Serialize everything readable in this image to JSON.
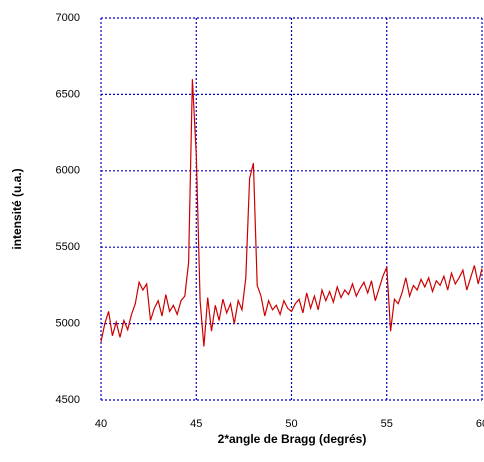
{
  "chart_data": {
    "type": "line",
    "xlabel": "2*angle  de  Bragg  (degrés)",
    "ylabel": "intensité  (u.a.)",
    "x": [
      40.0,
      40.2,
      40.4,
      40.6,
      40.8,
      41.0,
      41.2,
      41.4,
      41.6,
      41.8,
      42.0,
      42.2,
      42.4,
      42.6,
      42.8,
      43.0,
      43.2,
      43.4,
      43.6,
      43.8,
      44.0,
      44.2,
      44.4,
      44.6,
      44.8,
      45.0,
      45.2,
      45.4,
      45.6,
      45.8,
      46.0,
      46.2,
      46.4,
      46.6,
      46.8,
      47.0,
      47.2,
      47.4,
      47.6,
      47.8,
      48.0,
      48.2,
      48.4,
      48.6,
      48.8,
      49.0,
      49.2,
      49.4,
      49.6,
      49.8,
      50.0,
      50.2,
      50.4,
      50.6,
      50.8,
      51.0,
      51.2,
      51.4,
      51.6,
      51.8,
      52.0,
      52.2,
      52.4,
      52.6,
      52.8,
      53.0,
      53.2,
      53.4,
      53.6,
      53.8,
      54.0,
      54.2,
      54.4,
      54.6,
      54.8,
      55.0,
      55.2,
      55.4,
      55.6,
      55.8,
      56.0,
      56.2,
      56.4,
      56.6,
      56.8,
      57.0,
      57.2,
      57.4,
      57.6,
      57.8,
      58.0,
      58.2,
      58.4,
      58.6,
      58.8,
      59.0,
      59.2,
      59.4,
      59.6,
      59.8,
      60.0
    ],
    "series": [
      {
        "color": "#cc0000",
        "values": [
          4880,
          5000,
          5080,
          4920,
          5010,
          4910,
          5020,
          4960,
          5060,
          5130,
          5270,
          5220,
          5260,
          5020,
          5100,
          5150,
          5050,
          5190,
          5080,
          5120,
          5060,
          5150,
          5180,
          5400,
          6600,
          6100,
          5150,
          4850,
          5170,
          4950,
          5120,
          5020,
          5160,
          5070,
          5130,
          5000,
          5150,
          5090,
          5300,
          5950,
          6050,
          5250,
          5180,
          5050,
          5150,
          5090,
          5120,
          5060,
          5150,
          5100,
          5080,
          5130,
          5160,
          5070,
          5200,
          5100,
          5180,
          5090,
          5220,
          5150,
          5210,
          5140,
          5240,
          5170,
          5220,
          5190,
          5260,
          5180,
          5230,
          5270,
          5200,
          5280,
          5150,
          5230,
          5310,
          5370,
          4950,
          5160,
          5130,
          5200,
          5300,
          5180,
          5250,
          5220,
          5290,
          5240,
          5300,
          5210,
          5280,
          5250,
          5310,
          5220,
          5330,
          5260,
          5300,
          5350,
          5220,
          5300,
          5380,
          5260,
          5360
        ]
      }
    ],
    "xlim": [
      40,
      60
    ],
    "xticks": [
      40,
      45,
      50,
      55,
      60
    ],
    "ylim": [
      4500,
      7000
    ],
    "yticks": [
      4500,
      5000,
      5500,
      6000,
      6500,
      7000
    ],
    "grid": true,
    "grid_color": "#0000cc"
  }
}
